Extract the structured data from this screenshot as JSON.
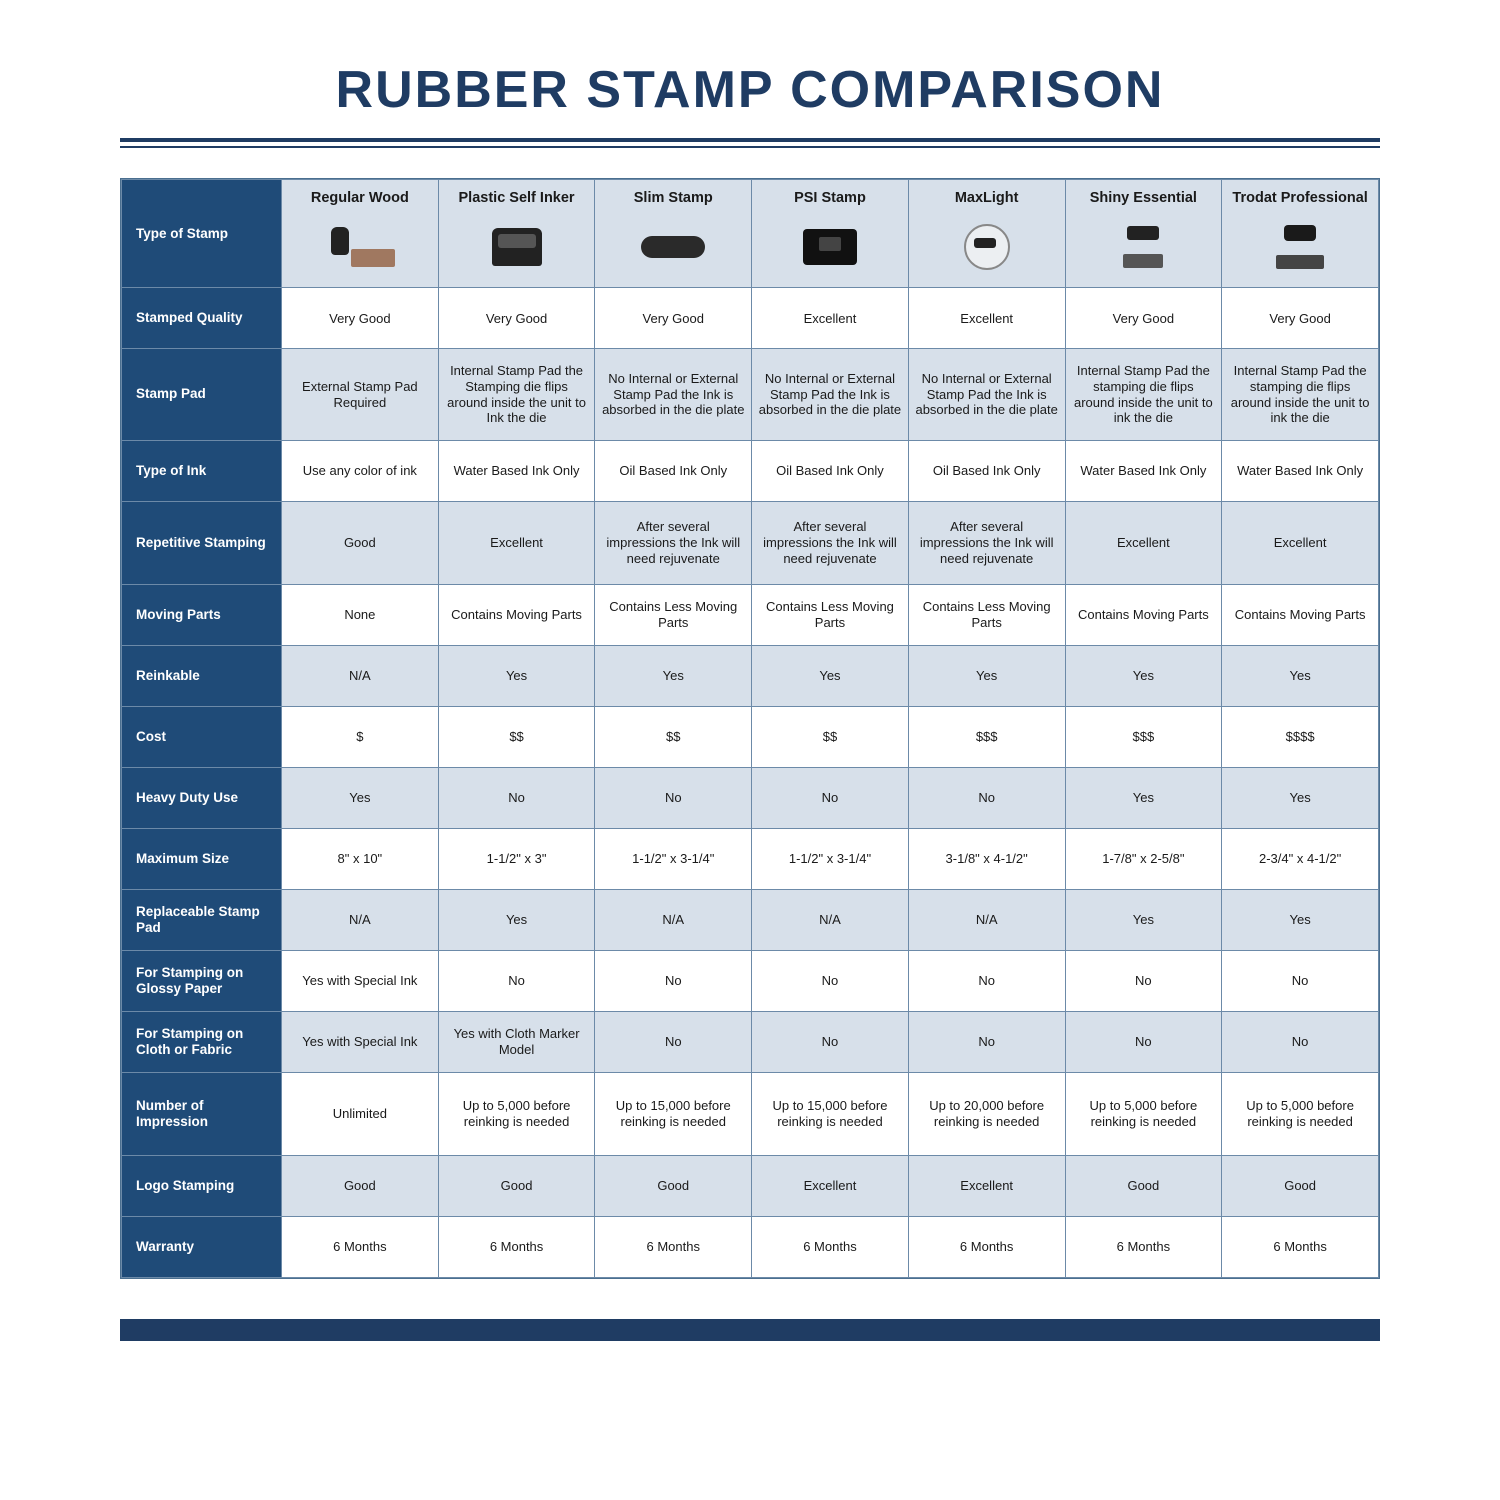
{
  "colors": {
    "brand": "#1f3c63",
    "row_head_bg": "#1f4b78",
    "row_head_fg": "#ffffff",
    "stripe_bg": "#d7e0ea",
    "plain_bg": "#ffffff",
    "border": "#6c8aa8",
    "text": "#1a1a1a"
  },
  "title": "RUBBER STAMP COMPARISON",
  "type_of_stamp_label": "Type of Stamp",
  "columns": [
    {
      "name": "Regular Wood",
      "icon": "wood"
    },
    {
      "name": "Plastic Self Inker",
      "icon": "selfink"
    },
    {
      "name": "Slim Stamp",
      "icon": "slim"
    },
    {
      "name": "PSI Stamp",
      "icon": "psi"
    },
    {
      "name": "MaxLight",
      "icon": "maxl"
    },
    {
      "name": "Shiny Essential",
      "icon": "shiny"
    },
    {
      "name": "Trodat Professional",
      "icon": "trodat"
    }
  ],
  "row_heights": {
    "short": 48,
    "tall": 70
  },
  "rows": [
    {
      "label": "Stamped Quality",
      "tall": false,
      "cells": [
        "Very Good",
        "Very Good",
        "Very Good",
        "Excellent",
        "Excellent",
        "Very Good",
        "Very Good"
      ]
    },
    {
      "label": "Stamp Pad",
      "tall": true,
      "cells": [
        "External Stamp Pad Required",
        "Internal Stamp Pad the Stamping die flips around inside the unit to Ink the die",
        "No Internal or External Stamp Pad the Ink is absorbed in the die plate",
        "No Internal or External Stamp Pad the Ink is absorbed in the die plate",
        "No Internal or External Stamp Pad the Ink is absorbed in the die plate",
        "Internal Stamp Pad the stamping die flips around inside the unit to ink the die",
        "Internal Stamp Pad the stamping die flips around inside the unit to ink the die"
      ]
    },
    {
      "label": "Type of Ink",
      "tall": false,
      "cells": [
        "Use any color of ink",
        "Water Based Ink Only",
        "Oil Based Ink Only",
        "Oil Based Ink Only",
        "Oil Based Ink Only",
        "Water Based Ink Only",
        "Water Based Ink Only"
      ]
    },
    {
      "label": "Repetitive Stamping",
      "tall": true,
      "cells": [
        "Good",
        "Excellent",
        "After several impressions the Ink will need rejuvenate",
        "After several impressions the Ink will need rejuvenate",
        "After several impressions the Ink will need rejuvenate",
        "Excellent",
        "Excellent"
      ]
    },
    {
      "label": "Moving Parts",
      "tall": false,
      "cells": [
        "None",
        "Contains Moving Parts",
        "Contains Less Moving Parts",
        "Contains Less Moving Parts",
        "Contains Less Moving Parts",
        "Contains Moving Parts",
        "Contains Moving Parts"
      ]
    },
    {
      "label": "Reinkable",
      "tall": false,
      "cells": [
        "N/A",
        "Yes",
        "Yes",
        "Yes",
        "Yes",
        "Yes",
        "Yes"
      ]
    },
    {
      "label": "Cost",
      "tall": false,
      "cells": [
        "$",
        "$$",
        "$$",
        "$$",
        "$$$",
        "$$$",
        "$$$$"
      ]
    },
    {
      "label": "Heavy Duty Use",
      "tall": false,
      "cells": [
        "Yes",
        "No",
        "No",
        "No",
        "No",
        "Yes",
        "Yes"
      ]
    },
    {
      "label": "Maximum Size",
      "tall": false,
      "cells": [
        "8\" x 10\"",
        "1-1/2\" x 3\"",
        "1-1/2\" x 3-1/4\"",
        "1-1/2\" x 3-1/4\"",
        "3-1/8\" x 4-1/2\"",
        "1-7/8\" x 2-5/8\"",
        "2-3/4\" x 4-1/2\""
      ]
    },
    {
      "label": "Replaceable Stamp Pad",
      "tall": false,
      "cells": [
        "N/A",
        "Yes",
        "N/A",
        "N/A",
        "N/A",
        "Yes",
        "Yes"
      ]
    },
    {
      "label": "For Stamping on Glossy Paper",
      "tall": false,
      "cells": [
        "Yes with Special Ink",
        "No",
        "No",
        "No",
        "No",
        "No",
        "No"
      ]
    },
    {
      "label": "For Stamping on Cloth or Fabric",
      "tall": false,
      "cells": [
        "Yes with Special Ink",
        "Yes with Cloth Marker Model",
        "No",
        "No",
        "No",
        "No",
        "No"
      ]
    },
    {
      "label": "Number of Impression",
      "tall": true,
      "cells": [
        "Unlimited",
        "Up to 5,000 before reinking is needed",
        "Up to 15,000 before reinking is needed",
        "Up to 15,000 before reinking is needed",
        "Up to 20,000 before reinking is needed",
        "Up to 5,000 before reinking is needed",
        "Up to 5,000 before reinking is needed"
      ]
    },
    {
      "label": "Logo Stamping",
      "tall": false,
      "cells": [
        "Good",
        "Good",
        "Good",
        "Excellent",
        "Excellent",
        "Good",
        "Good"
      ]
    },
    {
      "label": "Warranty",
      "tall": false,
      "cells": [
        "6 Months",
        "6 Months",
        "6 Months",
        "6 Months",
        "6 Months",
        "6 Months",
        "6 Months"
      ]
    }
  ]
}
